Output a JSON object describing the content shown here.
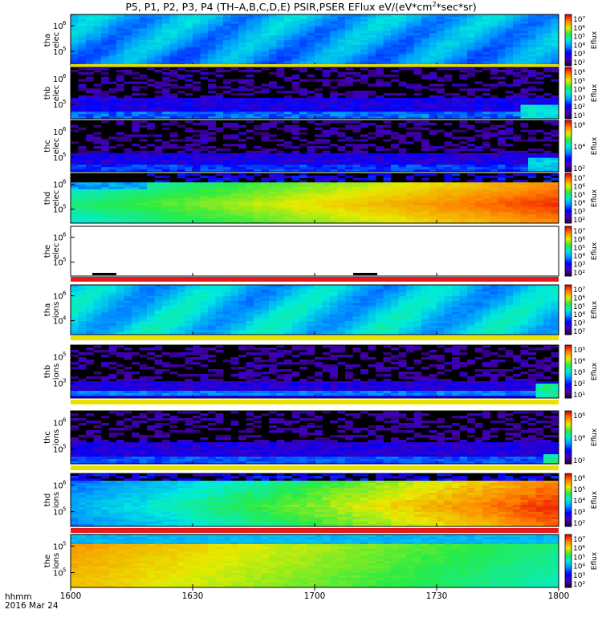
{
  "title": {
    "pre": "P5, P1, P2, P3, P4 (TH–A,B,C,D,E) PSIR,PSER EFlux eV/(eV*cm",
    "sup": "2",
    "post": "*sec*sr)"
  },
  "footer": {
    "label1": "hhmm",
    "label2": "2016 Mar 24"
  },
  "colors": {
    "background": "#ffffff",
    "axis": "#000000",
    "gap": "#000000"
  },
  "chart_data": {
    "type": "heatmap",
    "x": {
      "ticks": [
        "1600",
        "1630",
        "1700",
        "1730",
        "1800"
      ]
    },
    "panels": [
      {
        "id": "tha-elec",
        "ylabel": [
          "tha",
          "elec"
        ],
        "yticks": [
          {
            "base": "10",
            "exp": "6"
          },
          {
            "base": "10",
            "exp": "5"
          }
        ],
        "cbar_label": "Eflux",
        "cbar_ticks": [
          "10⁷",
          "10⁶",
          "10⁵",
          "10⁴",
          "10³",
          "10²"
        ],
        "pattern": "tha_elec",
        "bottom_strip": "#e8e000"
      },
      {
        "id": "thb-elec",
        "ylabel": [
          "thb",
          "elec"
        ],
        "yticks": [
          {
            "base": "10",
            "exp": "6"
          },
          {
            "base": "10",
            "exp": "5"
          }
        ],
        "cbar_label": "Eflux",
        "cbar_ticks": [
          "10⁶",
          "10⁵",
          "10⁴",
          "10³",
          "10²",
          "10¹"
        ],
        "pattern": "thb_elec"
      },
      {
        "id": "thc-elec",
        "ylabel": [
          "thc",
          "elec"
        ],
        "yticks": [
          {
            "base": "10",
            "exp": "6"
          },
          {
            "base": "10",
            "exp": "5"
          }
        ],
        "cbar_label": "Eflux",
        "cbar_ticks": [
          "10⁶",
          "10⁴",
          "10²"
        ],
        "pattern": "thc_elec"
      },
      {
        "id": "thd-elec",
        "ylabel": [
          "thd",
          "elec"
        ],
        "yticks": [
          {
            "base": "10",
            "exp": "6"
          },
          {
            "base": "10",
            "exp": "5"
          }
        ],
        "cbar_label": "Eflux",
        "cbar_ticks": [
          "10⁷",
          "10⁶",
          "10⁵",
          "10⁴",
          "10³",
          "10²"
        ],
        "pattern": "thd_elec"
      },
      {
        "id": "the-elec",
        "ylabel": [
          "the",
          "elec"
        ],
        "yticks": [
          {
            "base": "10",
            "exp": "6"
          },
          {
            "base": "10",
            "exp": "5"
          }
        ],
        "cbar_label": "Eflux",
        "cbar_ticks": [
          "10⁷",
          "10⁶",
          "10⁵",
          "10⁴",
          "10³",
          "10²"
        ],
        "pattern": "the_elec",
        "bottom_strip": "#e41a1c"
      },
      {
        "id": "tha-ions",
        "ylabel": [
          "tha",
          "ions"
        ],
        "yticks": [
          {
            "base": "10",
            "exp": "6"
          },
          {
            "base": "10",
            "exp": "4"
          }
        ],
        "cbar_label": "Eflux",
        "cbar_ticks": [
          "10⁷",
          "10⁶",
          "10⁵",
          "10⁴",
          "10³",
          "10²"
        ],
        "pattern": "tha_ions",
        "bottom_strip": "#e8e000"
      },
      {
        "id": "thb-ions",
        "ylabel": [
          "thb",
          "ions"
        ],
        "yticks": [
          {
            "base": "10",
            "exp": "5"
          },
          {
            "base": "10",
            "exp": "3"
          }
        ],
        "cbar_label": "Eflux",
        "cbar_ticks": [
          "10⁵",
          "10⁴",
          "10³",
          "10²",
          "10¹"
        ],
        "pattern": "thb_ions",
        "bottom_strip": "#e8e000"
      },
      {
        "id": "thc-ions",
        "ylabel": [
          "thc",
          "ions"
        ],
        "yticks": [
          {
            "base": "10",
            "exp": "6"
          },
          {
            "base": "10",
            "exp": "5"
          }
        ],
        "cbar_label": "Eflux",
        "cbar_ticks": [
          "10⁶",
          "10⁴",
          "10²"
        ],
        "pattern": "thc_ions",
        "bottom_strip": "#e8e000"
      },
      {
        "id": "thd-ions",
        "ylabel": [
          "thd",
          "ions"
        ],
        "yticks": [
          {
            "base": "10",
            "exp": "6"
          },
          {
            "base": "10",
            "exp": "5"
          }
        ],
        "cbar_label": "Eflux",
        "cbar_ticks": [
          "10⁶",
          "10⁵",
          "10⁴",
          "10³",
          "10²"
        ],
        "pattern": "thd_ions",
        "bottom_strip": "#e41a1c"
      },
      {
        "id": "the-ions",
        "ylabel": [
          "the",
          "ions"
        ],
        "yticks": [
          {
            "base": "10",
            "exp": "5"
          },
          {
            "base": "10",
            "exp": "5"
          }
        ],
        "cbar_label": "Eflux",
        "cbar_ticks": [
          "10⁷",
          "10⁶",
          "10⁵",
          "10⁴",
          "10³",
          "10²"
        ],
        "pattern": "the_ions"
      }
    ]
  }
}
